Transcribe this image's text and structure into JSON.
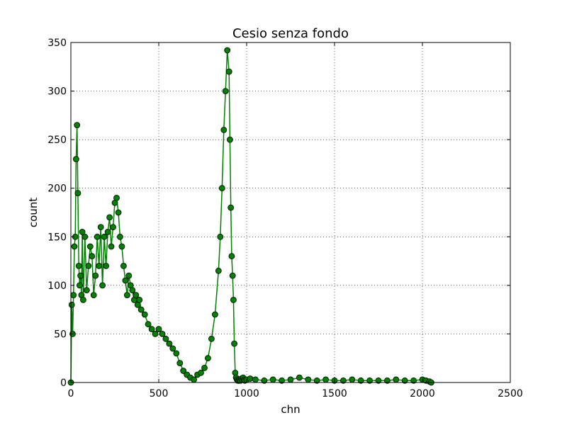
{
  "chart_data": {
    "type": "line",
    "title": "Cesio senza fondo",
    "xlabel": "chn",
    "ylabel": "count",
    "xlim": [
      0,
      2500
    ],
    "ylim": [
      0,
      350
    ],
    "xticks": [
      0,
      500,
      1000,
      1500,
      2000,
      2500
    ],
    "yticks": [
      0,
      50,
      100,
      150,
      200,
      250,
      300,
      350
    ],
    "grid": true,
    "legend": "none",
    "series_color": "#008000",
    "marker_color": "#008000",
    "marker_edge": "#000000",
    "marker": "circle",
    "series": [
      {
        "x": [
          0,
          5,
          10,
          15,
          20,
          25,
          30,
          35,
          40,
          45,
          50,
          55,
          60,
          65,
          70,
          80,
          90,
          100,
          110,
          120,
          130,
          140,
          150,
          160,
          170,
          180,
          190,
          200,
          210,
          220,
          230,
          240,
          250,
          260,
          270,
          280,
          290,
          300,
          310,
          320,
          330,
          340,
          350,
          360,
          370,
          380,
          390,
          400,
          420,
          440,
          460,
          480,
          500,
          520,
          540,
          560,
          580,
          600,
          620,
          640,
          660,
          680,
          700,
          720,
          740,
          760,
          780,
          800,
          820,
          840,
          850,
          860,
          870,
          880,
          890,
          900,
          905,
          910,
          915,
          920,
          925,
          930,
          935,
          940,
          945,
          950,
          955,
          960,
          965,
          970,
          975,
          980,
          985,
          990,
          1000,
          1020,
          1050,
          1100,
          1150,
          1200,
          1250,
          1300,
          1350,
          1400,
          1450,
          1500,
          1550,
          1600,
          1650,
          1700,
          1750,
          1800,
          1850,
          1900,
          1950,
          2000,
          2020,
          2040,
          2050
        ],
        "y": [
          0,
          80,
          50,
          90,
          140,
          150,
          230,
          265,
          195,
          120,
          100,
          110,
          90,
          155,
          85,
          150,
          95,
          120,
          140,
          130,
          90,
          110,
          150,
          120,
          160,
          100,
          150,
          120,
          155,
          170,
          140,
          160,
          185,
          190,
          175,
          150,
          140,
          120,
          105,
          90,
          110,
          100,
          95,
          85,
          90,
          80,
          85,
          75,
          70,
          60,
          55,
          50,
          55,
          50,
          45,
          40,
          35,
          30,
          20,
          12,
          8,
          5,
          3,
          8,
          10,
          15,
          25,
          45,
          70,
          115,
          150,
          200,
          260,
          300,
          342,
          320,
          250,
          180,
          130,
          110,
          85,
          40,
          10,
          5,
          3,
          2,
          2,
          3,
          2,
          4,
          3,
          5,
          3,
          2,
          3,
          4,
          3,
          2,
          3,
          2,
          3,
          5,
          3,
          2,
          3,
          2,
          2,
          3,
          2,
          2,
          2,
          2,
          3,
          2,
          2,
          3,
          2,
          1,
          0
        ]
      }
    ]
  }
}
